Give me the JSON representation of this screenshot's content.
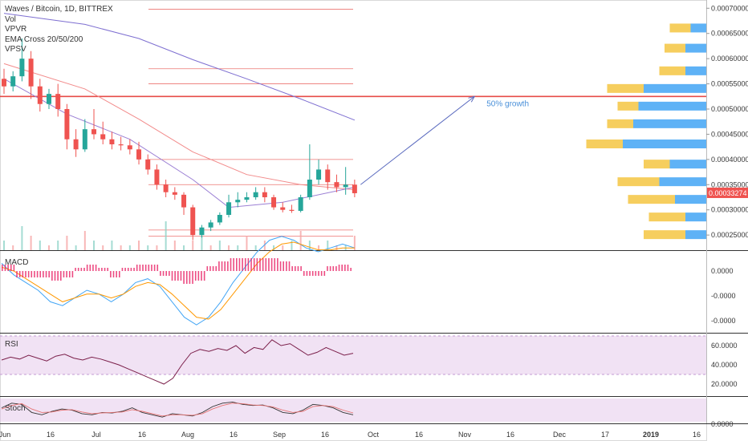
{
  "main": {
    "title": "Waves / Bitcoin, 1D, BITTREX",
    "indicators": [
      "Vol",
      "VPVR",
      "EMA Cross 20/50/200",
      "VPSV"
    ],
    "annotation": "50% growth",
    "price_badge": "0.00033274",
    "price_ticks": [
      "0.00070000",
      "0.00065000",
      "0.00060000",
      "0.00055000",
      "0.00050000",
      "0.00045000",
      "0.00040000",
      "0.00035000",
      "0.00030000",
      "0.00025000"
    ]
  },
  "macd": {
    "title": "MACD",
    "ticks": [
      "0.0000",
      "-0.0000",
      "-0.0000"
    ]
  },
  "rsi": {
    "title": "RSI",
    "ticks": [
      "60.0000",
      "40.0000",
      "20.0000"
    ]
  },
  "stoch": {
    "title": "Stoch",
    "ticks": [
      "0.0000"
    ]
  },
  "time_axis": [
    {
      "label": "Jun",
      "bold": false
    },
    {
      "label": "16",
      "bold": false
    },
    {
      "label": "Jul",
      "bold": false
    },
    {
      "label": "16",
      "bold": false
    },
    {
      "label": "Aug",
      "bold": false
    },
    {
      "label": "16",
      "bold": false
    },
    {
      "label": "Sep",
      "bold": false
    },
    {
      "label": "16",
      "bold": false
    },
    {
      "label": "Oct",
      "bold": false
    },
    {
      "label": "16",
      "bold": false
    },
    {
      "label": "Nov",
      "bold": false
    },
    {
      "label": "16",
      "bold": false
    },
    {
      "label": "Dec",
      "bold": false
    },
    {
      "label": "17",
      "bold": false
    },
    {
      "label": "2019",
      "bold": true
    },
    {
      "label": "16",
      "bold": false
    }
  ],
  "colors": {
    "up": "#26a69a",
    "down": "#ef5350",
    "ema200": "#7e6fd1",
    "ema50": "#f28b8b",
    "ema20": "#9b7fd4",
    "hline": "#e53935",
    "arrow": "#5b6bbf",
    "annotation": "#4a90d9",
    "vp_buy": "#f4c542",
    "vp_sell": "#42a5f5",
    "rsi_band": "#e1bee7",
    "rsi_line": "#7b1f4a",
    "macd_line": "#42a5f5",
    "signal_line": "#ff9800",
    "hist": "#e91e63"
  },
  "chart_data": [
    {
      "type": "candlestick",
      "title": "Waves / Bitcoin, 1D, BITTREX",
      "x_range": [
        "2018-06-01",
        "2019-01-20"
      ],
      "ylim": [
        0.00022,
        0.00071
      ],
      "candles": [
        {
          "date": "2018-06-01",
          "o": 0.00056,
          "h": 0.00058,
          "c": 0.000545,
          "l": 0.00053
        },
        {
          "date": "2018-06-04",
          "o": 0.000545,
          "h": 0.000575,
          "c": 0.000565,
          "l": 0.000535
        },
        {
          "date": "2018-06-07",
          "o": 0.000565,
          "h": 0.00064,
          "c": 0.0006,
          "l": 0.000555
        },
        {
          "date": "2018-06-10",
          "o": 0.0006,
          "h": 0.000615,
          "c": 0.000545,
          "l": 0.00052
        },
        {
          "date": "2018-06-13",
          "o": 0.000545,
          "h": 0.00056,
          "c": 0.00051,
          "l": 0.000495
        },
        {
          "date": "2018-06-16",
          "o": 0.00051,
          "h": 0.00054,
          "c": 0.00053,
          "l": 0.0005
        },
        {
          "date": "2018-06-19",
          "o": 0.00053,
          "h": 0.00055,
          "c": 0.0005,
          "l": 0.000485
        },
        {
          "date": "2018-06-22",
          "o": 0.0005,
          "h": 0.00051,
          "c": 0.00044,
          "l": 0.00042
        },
        {
          "date": "2018-06-25",
          "o": 0.00044,
          "h": 0.00046,
          "c": 0.00042,
          "l": 0.000405
        },
        {
          "date": "2018-06-28",
          "o": 0.00042,
          "h": 0.00048,
          "c": 0.00046,
          "l": 0.000415
        },
        {
          "date": "2018-07-01",
          "o": 0.00046,
          "h": 0.0005,
          "c": 0.00045,
          "l": 0.00044
        },
        {
          "date": "2018-07-04",
          "o": 0.00045,
          "h": 0.000475,
          "c": 0.00044,
          "l": 0.00043
        },
        {
          "date": "2018-07-07",
          "o": 0.00044,
          "h": 0.000455,
          "c": 0.00043,
          "l": 0.00042
        },
        {
          "date": "2018-07-10",
          "o": 0.00043,
          "h": 0.000445,
          "c": 0.000428,
          "l": 0.000418
        },
        {
          "date": "2018-07-13",
          "o": 0.000428,
          "h": 0.00044,
          "c": 0.00042,
          "l": 0.00041
        },
        {
          "date": "2018-07-16",
          "o": 0.00042,
          "h": 0.000435,
          "c": 0.0004,
          "l": 0.00039
        },
        {
          "date": "2018-07-19",
          "o": 0.0004,
          "h": 0.00041,
          "c": 0.00038,
          "l": 0.00037
        },
        {
          "date": "2018-07-22",
          "o": 0.00038,
          "h": 0.00039,
          "c": 0.00035,
          "l": 0.00034
        },
        {
          "date": "2018-07-25",
          "o": 0.00035,
          "h": 0.00036,
          "c": 0.000335,
          "l": 0.000325
        },
        {
          "date": "2018-07-28",
          "o": 0.000335,
          "h": 0.000345,
          "c": 0.00033,
          "l": 0.00032
        },
        {
          "date": "2018-07-31",
          "o": 0.00033,
          "h": 0.000335,
          "c": 0.000305,
          "l": 0.00029
        },
        {
          "date": "2018-08-03",
          "o": 0.000305,
          "h": 0.00031,
          "c": 0.00025,
          "l": 0.00024
        },
        {
          "date": "2018-08-06",
          "o": 0.00025,
          "h": 0.00027,
          "c": 0.000265,
          "l": 0.000245
        },
        {
          "date": "2018-08-09",
          "o": 0.000265,
          "h": 0.00028,
          "c": 0.000275,
          "l": 0.000258
        },
        {
          "date": "2018-08-12",
          "o": 0.000275,
          "h": 0.000295,
          "c": 0.00029,
          "l": 0.00027
        },
        {
          "date": "2018-08-15",
          "o": 0.00029,
          "h": 0.00033,
          "c": 0.000315,
          "l": 0.000285
        },
        {
          "date": "2018-08-18",
          "o": 0.000315,
          "h": 0.000335,
          "c": 0.00032,
          "l": 0.000305
        },
        {
          "date": "2018-08-21",
          "o": 0.00032,
          "h": 0.000335,
          "c": 0.000325,
          "l": 0.000315
        },
        {
          "date": "2018-08-24",
          "o": 0.000325,
          "h": 0.000345,
          "c": 0.000335,
          "l": 0.00032
        },
        {
          "date": "2018-08-27",
          "o": 0.000335,
          "h": 0.000345,
          "c": 0.000325,
          "l": 0.000315
        },
        {
          "date": "2018-08-30",
          "o": 0.000325,
          "h": 0.00033,
          "c": 0.000305,
          "l": 0.0003
        },
        {
          "date": "2018-09-02",
          "o": 0.000305,
          "h": 0.000315,
          "c": 0.0003,
          "l": 0.000295
        },
        {
          "date": "2018-09-05",
          "o": 0.0003,
          "h": 0.00031,
          "c": 0.000298,
          "l": 0.000294
        },
        {
          "date": "2018-09-08",
          "o": 0.000298,
          "h": 0.00033,
          "c": 0.000325,
          "l": 0.000295
        },
        {
          "date": "2018-09-11",
          "o": 0.000325,
          "h": 0.00043,
          "c": 0.00036,
          "l": 0.00032
        },
        {
          "date": "2018-09-14",
          "o": 0.00036,
          "h": 0.0004,
          "c": 0.00038,
          "l": 0.00035
        },
        {
          "date": "2018-09-17",
          "o": 0.00038,
          "h": 0.00039,
          "c": 0.000355,
          "l": 0.00034
        },
        {
          "date": "2018-09-20",
          "o": 0.000355,
          "h": 0.00037,
          "c": 0.000345,
          "l": 0.000335
        },
        {
          "date": "2018-09-23",
          "o": 0.000345,
          "h": 0.000385,
          "c": 0.00035,
          "l": 0.00033
        },
        {
          "date": "2018-09-26",
          "o": 0.00035,
          "h": 0.00036,
          "c": 0.000333,
          "l": 0.000325
        }
      ],
      "ema200": [
        {
          "date": "2018-06-01",
          "v": 0.00069
        },
        {
          "date": "2018-06-28",
          "v": 0.000668
        },
        {
          "date": "2018-07-16",
          "v": 0.00064
        },
        {
          "date": "2018-08-03",
          "v": 0.000598
        },
        {
          "date": "2018-08-21",
          "v": 0.00056
        },
        {
          "date": "2018-09-08",
          "v": 0.00052
        },
        {
          "date": "2018-09-26",
          "v": 0.000478
        }
      ],
      "ema50": [
        {
          "date": "2018-06-01",
          "v": 0.00059
        },
        {
          "date": "2018-06-28",
          "v": 0.00054
        },
        {
          "date": "2018-07-16",
          "v": 0.00048
        },
        {
          "date": "2018-08-03",
          "v": 0.000415
        },
        {
          "date": "2018-08-21",
          "v": 0.00037
        },
        {
          "date": "2018-09-08",
          "v": 0.00035
        },
        {
          "date": "2018-09-26",
          "v": 0.00034
        }
      ],
      "ema20": [
        {
          "date": "2018-06-01",
          "v": 0.00056
        },
        {
          "date": "2018-06-22",
          "v": 0.00049
        },
        {
          "date": "2018-07-13",
          "v": 0.00044
        },
        {
          "date": "2018-08-03",
          "v": 0.00036
        },
        {
          "date": "2018-08-15",
          "v": 0.000305
        },
        {
          "date": "2018-09-02",
          "v": 0.000315
        },
        {
          "date": "2018-09-26",
          "v": 0.000345
        }
      ],
      "horizontal_levels": [
        0.000698,
        0.00058,
        0.00055,
        0.000525,
        0.0004,
        0.00035,
        0.00026,
        0.000248
      ],
      "volume_profile": [
        {
          "price": 0.00066,
          "buy": 0.2,
          "sell": 0.15
        },
        {
          "price": 0.00062,
          "buy": 0.2,
          "sell": 0.2
        },
        {
          "price": 0.000575,
          "buy": 0.25,
          "sell": 0.2
        },
        {
          "price": 0.00054,
          "buy": 0.35,
          "sell": 0.6
        },
        {
          "price": 0.000505,
          "buy": 0.2,
          "sell": 0.65
        },
        {
          "price": 0.00047,
          "buy": 0.25,
          "sell": 0.7
        },
        {
          "price": 0.00043,
          "buy": 0.35,
          "sell": 0.8
        },
        {
          "price": 0.00039,
          "buy": 0.25,
          "sell": 0.35
        },
        {
          "price": 0.000355,
          "buy": 0.4,
          "sell": 0.45
        },
        {
          "price": 0.00032,
          "buy": 0.45,
          "sell": 0.3
        },
        {
          "price": 0.000285,
          "buy": 0.35,
          "sell": 0.2
        },
        {
          "price": 0.00025,
          "buy": 0.4,
          "sell": 0.2
        }
      ],
      "volume": [
        2,
        1,
        5,
        3,
        2,
        1,
        2,
        3,
        1,
        4,
        2,
        1,
        2,
        1,
        1,
        2,
        1,
        1,
        6,
        2,
        1,
        2,
        3,
        1,
        2,
        1,
        1,
        3,
        1,
        2,
        1,
        1,
        2,
        4,
        2,
        1,
        2,
        1,
        1,
        3
      ]
    },
    {
      "type": "line",
      "title": "MACD",
      "series": [
        {
          "values": [
            0.2,
            -0.1,
            -0.3,
            -0.5,
            -0.8,
            -0.9,
            -0.7,
            -0.5,
            -0.6,
            -0.8,
            -0.6,
            -0.3,
            -0.2,
            -0.4,
            -0.8,
            -1.2,
            -1.4,
            -1.2,
            -0.8,
            -0.3,
            0.1,
            0.5,
            0.8,
            0.9,
            0.8,
            0.6,
            0.5,
            0.6,
            0.7,
            0.6
          ]
        },
        {
          "values": [
            0.1,
            0.0,
            -0.2,
            -0.4,
            -0.6,
            -0.8,
            -0.7,
            -0.6,
            -0.6,
            -0.7,
            -0.6,
            -0.4,
            -0.3,
            -0.35,
            -0.6,
            -0.9,
            -1.2,
            -1.25,
            -1.0,
            -0.6,
            -0.2,
            0.2,
            0.5,
            0.7,
            0.75,
            0.65,
            0.55,
            0.55,
            0.6,
            0.6
          ]
        }
      ]
    },
    {
      "type": "line",
      "title": "RSI",
      "ylim": [
        10,
        70
      ],
      "series": [
        {
          "values": [
            45,
            48,
            46,
            50,
            47,
            44,
            49,
            51,
            47,
            45,
            48,
            46,
            43,
            40,
            36,
            32,
            28,
            24,
            20,
            26,
            40,
            52,
            56,
            54,
            57,
            55,
            60,
            52,
            58,
            56,
            66,
            60,
            62,
            56,
            50,
            53,
            58,
            54,
            50,
            52
          ]
        }
      ]
    },
    {
      "type": "line",
      "title": "Stoch",
      "series": [
        {
          "values": [
            60,
            80,
            75,
            40,
            30,
            45,
            55,
            50,
            35,
            30,
            40,
            38,
            45,
            60,
            40,
            30,
            20,
            35,
            30,
            25,
            40,
            65,
            80,
            85,
            75,
            70,
            72,
            60,
            40,
            35,
            50,
            75,
            70,
            60,
            40,
            30
          ]
        },
        {
          "values": [
            55,
            70,
            78,
            55,
            40,
            42,
            50,
            52,
            42,
            35,
            38,
            40,
            42,
            52,
            45,
            35,
            25,
            30,
            30,
            28,
            35,
            55,
            70,
            80,
            78,
            72,
            70,
            64,
            50,
            40,
            45,
            65,
            70,
            65,
            50,
            38
          ]
        }
      ]
    }
  ]
}
